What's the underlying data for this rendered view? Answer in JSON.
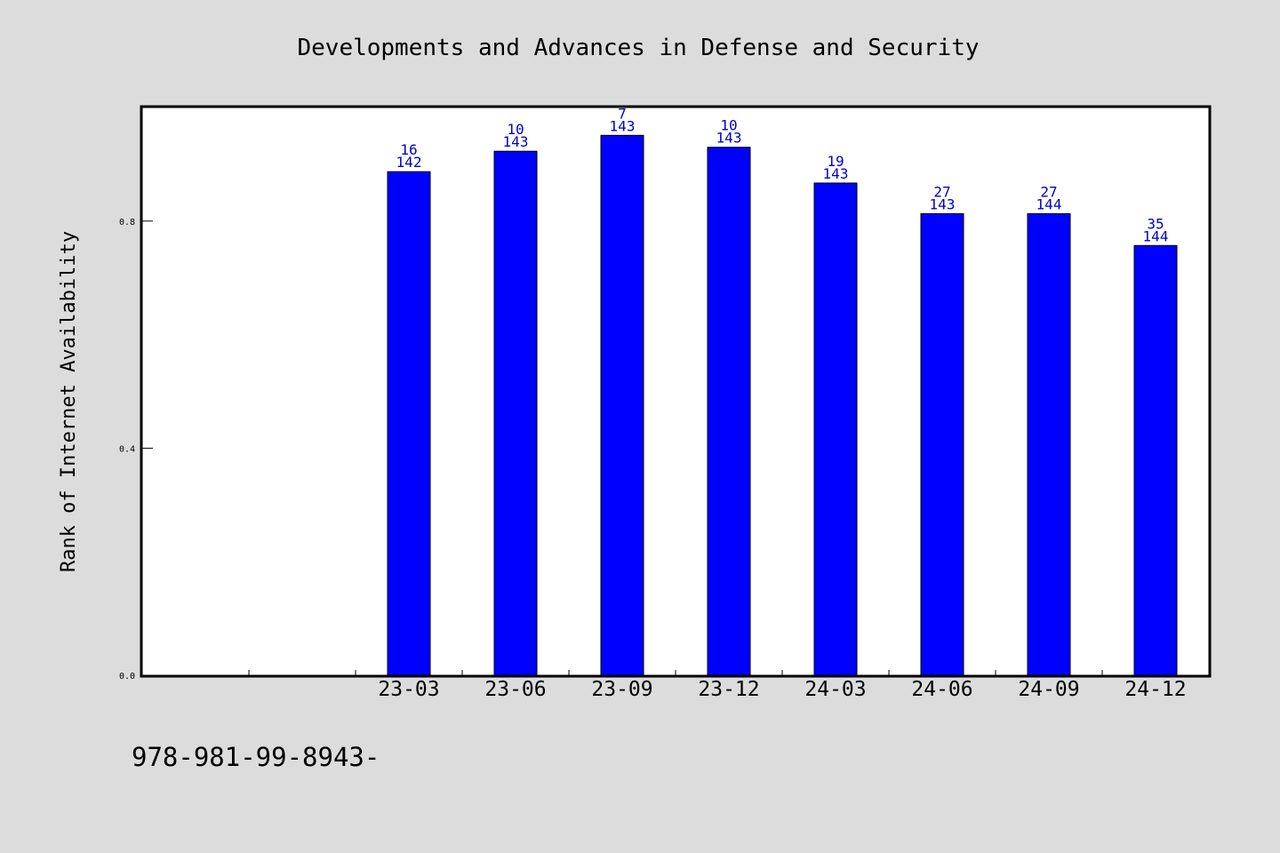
{
  "chart_data": {
    "type": "bar",
    "title": "Developments and Advances in Defense and Security",
    "xlabel": "",
    "ylabel": "Rank of Internet Availability",
    "ylim": [
      0,
      1.0
    ],
    "yticks": [
      "0.0",
      "0.4",
      "0.8"
    ],
    "categories": [
      "23-03",
      "23-06",
      "23-09",
      "23-12",
      "24-03",
      "24-06",
      "24-09",
      "24-12"
    ],
    "series": [
      {
        "values": [
          0.887,
          0.923,
          0.951,
          0.93,
          0.867,
          0.813,
          0.813,
          0.757
        ],
        "rank": [
          "16",
          "10",
          "7",
          "10",
          "19",
          "27",
          "27",
          "35"
        ],
        "total": [
          "142",
          "143",
          "143",
          "143",
          "143",
          "143",
          "144",
          "144"
        ]
      }
    ],
    "empty_slots_before": 2,
    "grid": false,
    "colors": {
      "bar": "#0000ff",
      "label": "#0000cc",
      "background": "#dcdcdc",
      "plot": "#ffffff"
    }
  },
  "footer": {
    "isbn": "978-981-99-8943-"
  }
}
